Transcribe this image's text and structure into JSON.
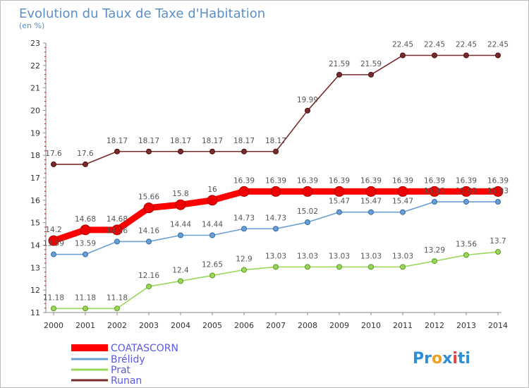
{
  "chart_data": {
    "type": "line",
    "title": "Evolution du Taux de Taxe d'Habitation",
    "subtitle": "(en %)",
    "x": [
      "2000",
      "2001",
      "2002",
      "2003",
      "2004",
      "2005",
      "2006",
      "2007",
      "2008",
      "2009",
      "2010",
      "2011",
      "2012",
      "2013",
      "2014"
    ],
    "ylim": [
      11,
      23
    ],
    "yticks": [
      11,
      12,
      13,
      14,
      15,
      16,
      17,
      18,
      19,
      20,
      21,
      22,
      23
    ],
    "grid": false,
    "legend_position": "bottom-left",
    "series": [
      {
        "name": "COATASCORN",
        "color": "#ff0000",
        "values": [
          14.2,
          14.68,
          14.68,
          15.66,
          15.8,
          16,
          16.39,
          16.39,
          16.39,
          16.39,
          16.39,
          16.39,
          16.39,
          16.39,
          16.39
        ],
        "labels": [
          "14.2",
          "14.68",
          "14.68",
          "15.66",
          "15.8",
          "16",
          "16.39",
          "16.39",
          "16.39",
          "16.39",
          "16.39",
          "16.39",
          "16.39",
          "16.39",
          "16.39"
        ]
      },
      {
        "name": "Brélidy",
        "color": "#6a9fd4",
        "values": [
          13.59,
          13.59,
          14.16,
          14.16,
          14.44,
          14.44,
          14.73,
          14.73,
          15.02,
          15.47,
          15.47,
          15.47,
          15.93,
          15.93,
          15.93
        ],
        "labels": [
          "13.59",
          "13.59",
          "14.16",
          "14.16",
          "14.44",
          "14.44",
          "14.73",
          "14.73",
          "15.02",
          "15.47",
          "15.47",
          "15.47",
          "15.93",
          "15.93",
          "15.93"
        ]
      },
      {
        "name": "Prat",
        "color": "#99d65a",
        "values": [
          11.18,
          11.18,
          11.18,
          12.16,
          12.4,
          12.65,
          12.9,
          13.03,
          13.03,
          13.03,
          13.03,
          13.03,
          13.29,
          13.56,
          13.7
        ],
        "labels": [
          "11.18",
          "11.18",
          "11.18",
          "12.16",
          "12.4",
          "12.65",
          "12.9",
          "13.03",
          "13.03",
          "13.03",
          "13.03",
          "13.03",
          "13.29",
          "13.56",
          "13.7"
        ]
      },
      {
        "name": "Runan",
        "color": "#7a2a2a",
        "values": [
          17.6,
          17.6,
          18.17,
          18.17,
          18.17,
          18.17,
          18.17,
          18.17,
          19.99,
          21.59,
          21.59,
          22.45,
          22.45,
          22.45,
          22.45
        ],
        "labels": [
          "17.6",
          "17.6",
          "18.17",
          "18.17",
          "18.17",
          "18.17",
          "18.17",
          "18.17",
          "19.99",
          "21.59",
          "21.59",
          "22.45",
          "22.45",
          "22.45",
          "22.45"
        ]
      }
    ]
  },
  "logo": {
    "text": "Proxiti"
  }
}
